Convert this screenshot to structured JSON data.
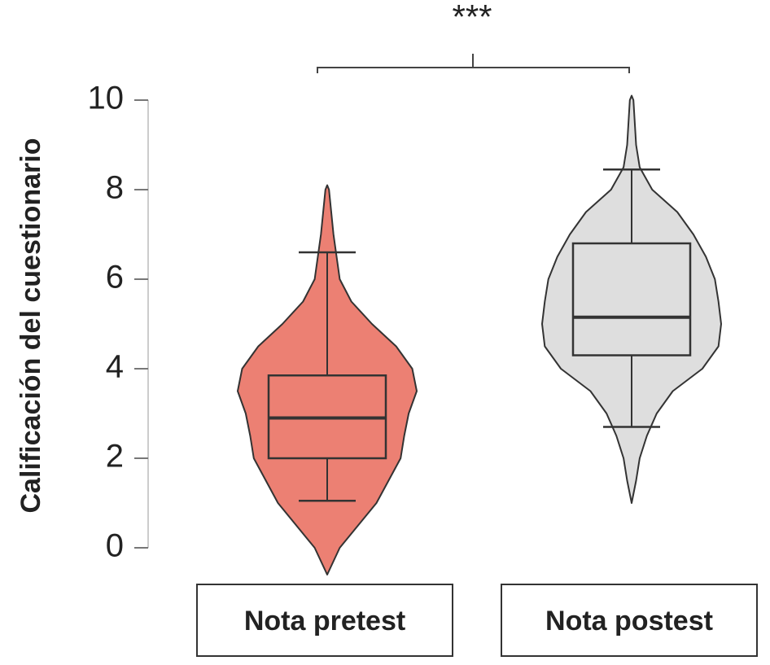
{
  "chart_data": {
    "type": "violin",
    "ylabel": "Calificación del cuestionario",
    "annotation": "***",
    "ylim": [
      0,
      10
    ],
    "yticks": [
      0,
      2,
      4,
      6,
      8,
      10
    ],
    "groups": [
      {
        "name": "Nota pretest",
        "color": "#ec8073",
        "whisker_low": 1.05,
        "q1": 2.0,
        "median": 2.9,
        "q3": 3.85,
        "whisker_high": 6.6,
        "density_y": [
          -0.6,
          0,
          1,
          2,
          2.5,
          3,
          3.5,
          4,
          4.5,
          5,
          5.5,
          6,
          7,
          8,
          8.1
        ],
        "density": [
          0,
          0.14,
          0.55,
          0.82,
          0.86,
          0.91,
          1,
          0.95,
          0.77,
          0.5,
          0.27,
          0.14,
          0.07,
          0.02,
          0
        ]
      },
      {
        "name": "Nota postest",
        "color": "#dedede",
        "whisker_low": 2.7,
        "q1": 4.3,
        "median": 5.15,
        "q3": 6.8,
        "whisker_high": 8.45,
        "density_y": [
          1.0,
          1.5,
          2,
          2.5,
          3,
          3.5,
          4,
          4.5,
          5,
          5.5,
          6,
          6.5,
          7,
          7.5,
          8,
          8.5,
          9,
          10,
          10.1
        ],
        "density": [
          0,
          0.05,
          0.09,
          0.17,
          0.28,
          0.46,
          0.79,
          0.97,
          1,
          0.97,
          0.93,
          0.83,
          0.69,
          0.51,
          0.23,
          0.09,
          0.05,
          0.02,
          0
        ]
      }
    ]
  }
}
